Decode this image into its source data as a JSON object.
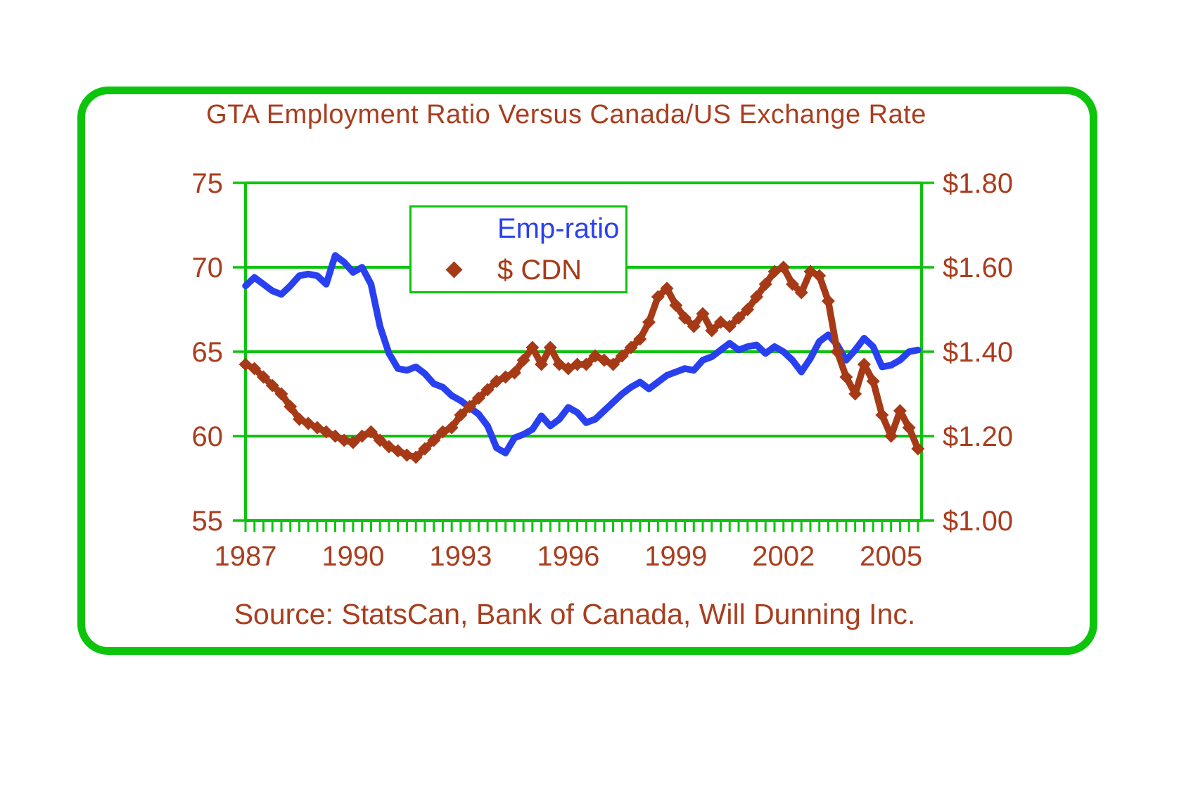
{
  "page": {
    "background": "#ffffff"
  },
  "frame": {
    "border_color": "#0dc40d"
  },
  "chart_data": {
    "type": "line",
    "title": "GTA Employment Ratio Versus Canada/US Exchange Rate",
    "source_note": "Source: StatsCan, Bank of Canada, Will Dunning Inc.",
    "title_color": "#a93d1e",
    "label_color": "#a93d1e",
    "axis_color": "#0dc40d",
    "grid": "horizontal-only",
    "x_axis": {
      "ticks": [
        1987,
        1990,
        1993,
        1996,
        1999,
        2002,
        2005
      ],
      "minor_tick_interval": 0.25,
      "range": [
        1987,
        2005.85
      ]
    },
    "left_axis": {
      "ticks": [
        75,
        70,
        65,
        60,
        55
      ],
      "range": [
        55,
        75
      ],
      "for_series": "Emp-ratio"
    },
    "right_axis": {
      "ticks": [
        "$1.80",
        "$1.60",
        "$1.40",
        "$1.20",
        "$1.00"
      ],
      "tick_values": [
        1.8,
        1.6,
        1.4,
        1.2,
        1.0
      ],
      "range": [
        1.0,
        1.8
      ],
      "for_series": "$ CDN"
    },
    "legend": {
      "position": "inside-top-center",
      "border_color": "#0dc40d",
      "entries": [
        "Emp-ratio",
        "$ CDN"
      ]
    },
    "x": [
      1987.0,
      1987.25,
      1987.5,
      1987.75,
      1988.0,
      1988.25,
      1988.5,
      1988.75,
      1989.0,
      1989.25,
      1989.5,
      1989.75,
      1990.0,
      1990.25,
      1990.5,
      1990.75,
      1991.0,
      1991.25,
      1991.5,
      1991.75,
      1992.0,
      1992.25,
      1992.5,
      1992.75,
      1993.0,
      1993.25,
      1993.5,
      1993.75,
      1994.0,
      1994.25,
      1994.5,
      1994.75,
      1995.0,
      1995.25,
      1995.5,
      1995.75,
      1996.0,
      1996.25,
      1996.5,
      1996.75,
      1997.0,
      1997.25,
      1997.5,
      1997.75,
      1998.0,
      1998.25,
      1998.5,
      1998.75,
      1999.0,
      1999.25,
      1999.5,
      1999.75,
      2000.0,
      2000.25,
      2000.5,
      2000.75,
      2001.0,
      2001.25,
      2001.5,
      2001.75,
      2002.0,
      2002.25,
      2002.5,
      2002.75,
      2003.0,
      2003.25,
      2003.5,
      2003.75,
      2004.0,
      2004.25,
      2004.5,
      2004.75,
      2005.0,
      2005.25,
      2005.5,
      2005.75
    ],
    "series": [
      {
        "name": "Emp-ratio",
        "axis": "left",
        "color": "#2940f0",
        "marker": "none",
        "values": [
          68.9,
          69.4,
          69.0,
          68.6,
          68.4,
          68.9,
          69.5,
          69.6,
          69.5,
          69.0,
          70.7,
          70.3,
          69.7,
          70.0,
          69.0,
          66.5,
          64.9,
          64.0,
          63.9,
          64.1,
          63.7,
          63.1,
          62.9,
          62.4,
          62.1,
          61.7,
          61.3,
          60.6,
          59.3,
          59.0,
          59.9,
          60.1,
          60.4,
          61.2,
          60.6,
          61.0,
          61.7,
          61.4,
          60.8,
          61.0,
          61.5,
          62.0,
          62.5,
          62.9,
          63.2,
          62.8,
          63.2,
          63.6,
          63.8,
          64.0,
          63.9,
          64.5,
          64.7,
          65.1,
          65.5,
          65.1,
          65.3,
          65.4,
          64.9,
          65.3,
          65.0,
          64.5,
          63.8,
          64.6,
          65.6,
          66.0,
          65.4,
          64.5,
          65.1,
          65.8,
          65.3,
          64.1,
          64.2,
          64.5,
          65.0,
          65.1
        ]
      },
      {
        "name": "$ CDN",
        "axis": "right",
        "color": "#a63a17",
        "marker": "diamond",
        "values": [
          1.37,
          1.36,
          1.34,
          1.32,
          1.3,
          1.27,
          1.24,
          1.23,
          1.22,
          1.21,
          1.2,
          1.19,
          1.185,
          1.2,
          1.21,
          1.19,
          1.175,
          1.165,
          1.155,
          1.15,
          1.17,
          1.19,
          1.21,
          1.22,
          1.25,
          1.27,
          1.29,
          1.31,
          1.33,
          1.34,
          1.35,
          1.38,
          1.41,
          1.37,
          1.41,
          1.37,
          1.36,
          1.37,
          1.37,
          1.39,
          1.38,
          1.37,
          1.39,
          1.41,
          1.43,
          1.47,
          1.53,
          1.55,
          1.51,
          1.48,
          1.46,
          1.49,
          1.45,
          1.47,
          1.46,
          1.48,
          1.5,
          1.53,
          1.56,
          1.59,
          1.6,
          1.56,
          1.54,
          1.59,
          1.58,
          1.52,
          1.4,
          1.34,
          1.3,
          1.37,
          1.33,
          1.25,
          1.2,
          1.26,
          1.22,
          1.17
        ]
      }
    ]
  }
}
